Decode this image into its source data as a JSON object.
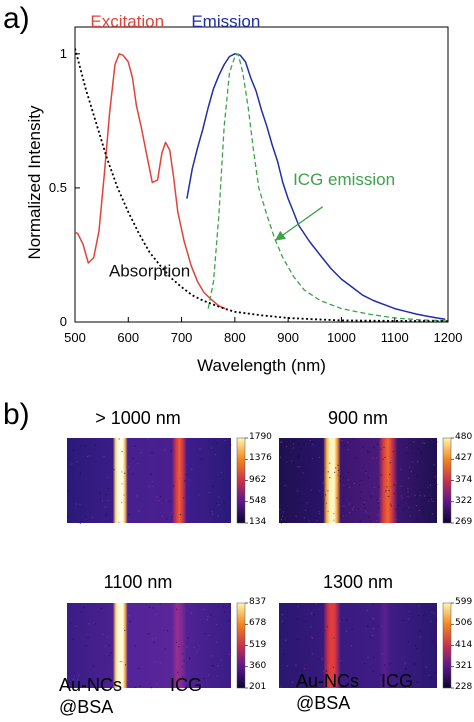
{
  "panel_a": {
    "label": "a)",
    "chart_data": {
      "type": "line",
      "xlabel": "Wavelength (nm)",
      "ylabel": "Normalized Intensity",
      "xlim": [
        500,
        1200
      ],
      "ylim": [
        0,
        1.1
      ],
      "x_ticks": [
        "500",
        "600",
        "700",
        "800",
        "900",
        "1000",
        "1100",
        "1200"
      ],
      "y_ticks": [
        "0",
        "0.5",
        "1"
      ],
      "grid": false,
      "series": [
        {
          "name": "Excitation",
          "color": "#e0433a",
          "style": "solid",
          "points": [
            [
              495,
              0.34
            ],
            [
              505,
              0.33
            ],
            [
              515,
              0.29
            ],
            [
              525,
              0.22
            ],
            [
              535,
              0.24
            ],
            [
              545,
              0.34
            ],
            [
              555,
              0.55
            ],
            [
              565,
              0.78
            ],
            [
              575,
              0.96
            ],
            [
              583,
              1.0
            ],
            [
              590,
              0.995
            ],
            [
              600,
              0.97
            ],
            [
              608,
              0.91
            ],
            [
              615,
              0.81
            ],
            [
              625,
              0.72
            ],
            [
              635,
              0.62
            ],
            [
              645,
              0.52
            ],
            [
              655,
              0.53
            ],
            [
              663,
              0.63
            ],
            [
              670,
              0.67
            ],
            [
              678,
              0.64
            ],
            [
              685,
              0.54
            ],
            [
              693,
              0.41
            ],
            [
              705,
              0.3
            ],
            [
              718,
              0.21
            ],
            [
              730,
              0.15
            ],
            [
              742,
              0.11
            ],
            [
              755,
              0.085
            ],
            [
              770,
              0.06
            ],
            [
              782,
              0.05
            ]
          ]
        },
        {
          "name": "Emission",
          "color": "#1f2fa8",
          "style": "solid",
          "points": [
            [
              710,
              0.46
            ],
            [
              720,
              0.57
            ],
            [
              730,
              0.65
            ],
            [
              740,
              0.72
            ],
            [
              750,
              0.8
            ],
            [
              760,
              0.87
            ],
            [
              770,
              0.92
            ],
            [
              780,
              0.96
            ],
            [
              790,
              0.99
            ],
            [
              800,
              1.0
            ],
            [
              810,
              0.995
            ],
            [
              820,
              0.97
            ],
            [
              830,
              0.91
            ],
            [
              840,
              0.86
            ],
            [
              850,
              0.79
            ],
            [
              860,
              0.73
            ],
            [
              870,
              0.66
            ],
            [
              880,
              0.6
            ],
            [
              890,
              0.52
            ],
            [
              900,
              0.46
            ],
            [
              910,
              0.41
            ],
            [
              920,
              0.36
            ],
            [
              940,
              0.3
            ],
            [
              960,
              0.25
            ],
            [
              980,
              0.2
            ],
            [
              1000,
              0.16
            ],
            [
              1020,
              0.13
            ],
            [
              1040,
              0.1
            ],
            [
              1060,
              0.08
            ],
            [
              1080,
              0.065
            ],
            [
              1100,
              0.05
            ],
            [
              1120,
              0.04
            ],
            [
              1140,
              0.03
            ],
            [
              1160,
              0.022
            ],
            [
              1180,
              0.015
            ],
            [
              1195,
              0.01
            ]
          ]
        },
        {
          "name": "ICG emission",
          "color": "#3ea24a",
          "style": "dashed",
          "points": [
            [
              750,
              0.05
            ],
            [
              760,
              0.15
            ],
            [
              770,
              0.4
            ],
            [
              780,
              0.73
            ],
            [
              790,
              0.93
            ],
            [
              800,
              0.99
            ],
            [
              806,
              1.0
            ],
            [
              815,
              0.93
            ],
            [
              825,
              0.8
            ],
            [
              835,
              0.64
            ],
            [
              845,
              0.5
            ],
            [
              860,
              0.4
            ],
            [
              875,
              0.31
            ],
            [
              890,
              0.24
            ],
            [
              910,
              0.17
            ],
            [
              930,
              0.12
            ],
            [
              960,
              0.08
            ],
            [
              1000,
              0.05
            ],
            [
              1050,
              0.03
            ],
            [
              1100,
              0.015
            ],
            [
              1150,
              0.008
            ],
            [
              1200,
              0.005
            ]
          ]
        },
        {
          "name": "Absorption",
          "color": "#000000",
          "style": "dotted",
          "points": [
            [
              500,
              1.02
            ],
            [
              520,
              0.87
            ],
            [
              540,
              0.74
            ],
            [
              560,
              0.61
            ],
            [
              580,
              0.5
            ],
            [
              600,
              0.41
            ],
            [
              620,
              0.33
            ],
            [
              640,
              0.26
            ],
            [
              660,
              0.21
            ],
            [
              680,
              0.165
            ],
            [
              700,
              0.13
            ],
            [
              720,
              0.1
            ],
            [
              740,
              0.08
            ],
            [
              760,
              0.065
            ],
            [
              780,
              0.05
            ],
            [
              800,
              0.038
            ],
            [
              850,
              0.025
            ],
            [
              900,
              0.015
            ],
            [
              950,
              0.01
            ],
            [
              1000,
              0.006
            ],
            [
              1100,
              0.004
            ],
            [
              1200,
              0.003
            ]
          ]
        }
      ],
      "annotations": [
        {
          "text": "Excitation",
          "color": "#e0433a",
          "at": [
            598,
            1.1
          ]
        },
        {
          "text": "Emission",
          "color": "#1f2fa8",
          "at": [
            783,
            1.1
          ]
        },
        {
          "text": "ICG emission",
          "color": "#3ea24a",
          "at": [
            1005,
            0.51
          ]
        },
        {
          "text": "Absorption",
          "color": "#111111",
          "at": [
            640,
            0.17
          ]
        }
      ],
      "arrow": {
        "from": [
          965,
          0.43
        ],
        "to": [
          880,
          0.31
        ],
        "color": "#3ea24a"
      }
    }
  },
  "panel_b": {
    "label": "b)",
    "images": [
      {
        "title": "> 1000 nm",
        "scale": [
          "1790",
          "1376",
          "962",
          "548",
          "134"
        ],
        "variant": "hot"
      },
      {
        "title": "900 nm",
        "scale": [
          "480",
          "427",
          "374",
          "322",
          "269"
        ],
        "variant": "noisy"
      },
      {
        "title": "1100 nm",
        "scale": [
          "837",
          "678",
          "519",
          "360",
          "201"
        ],
        "variant": "hot2"
      },
      {
        "title": "1300 nm",
        "scale": [
          "599",
          "506",
          "414",
          "321",
          "228"
        ],
        "variant": "dim"
      }
    ],
    "sample_labels": {
      "au_line1": "Au-NCs",
      "au_line2": "@BSA",
      "icg": "ICG"
    }
  }
}
